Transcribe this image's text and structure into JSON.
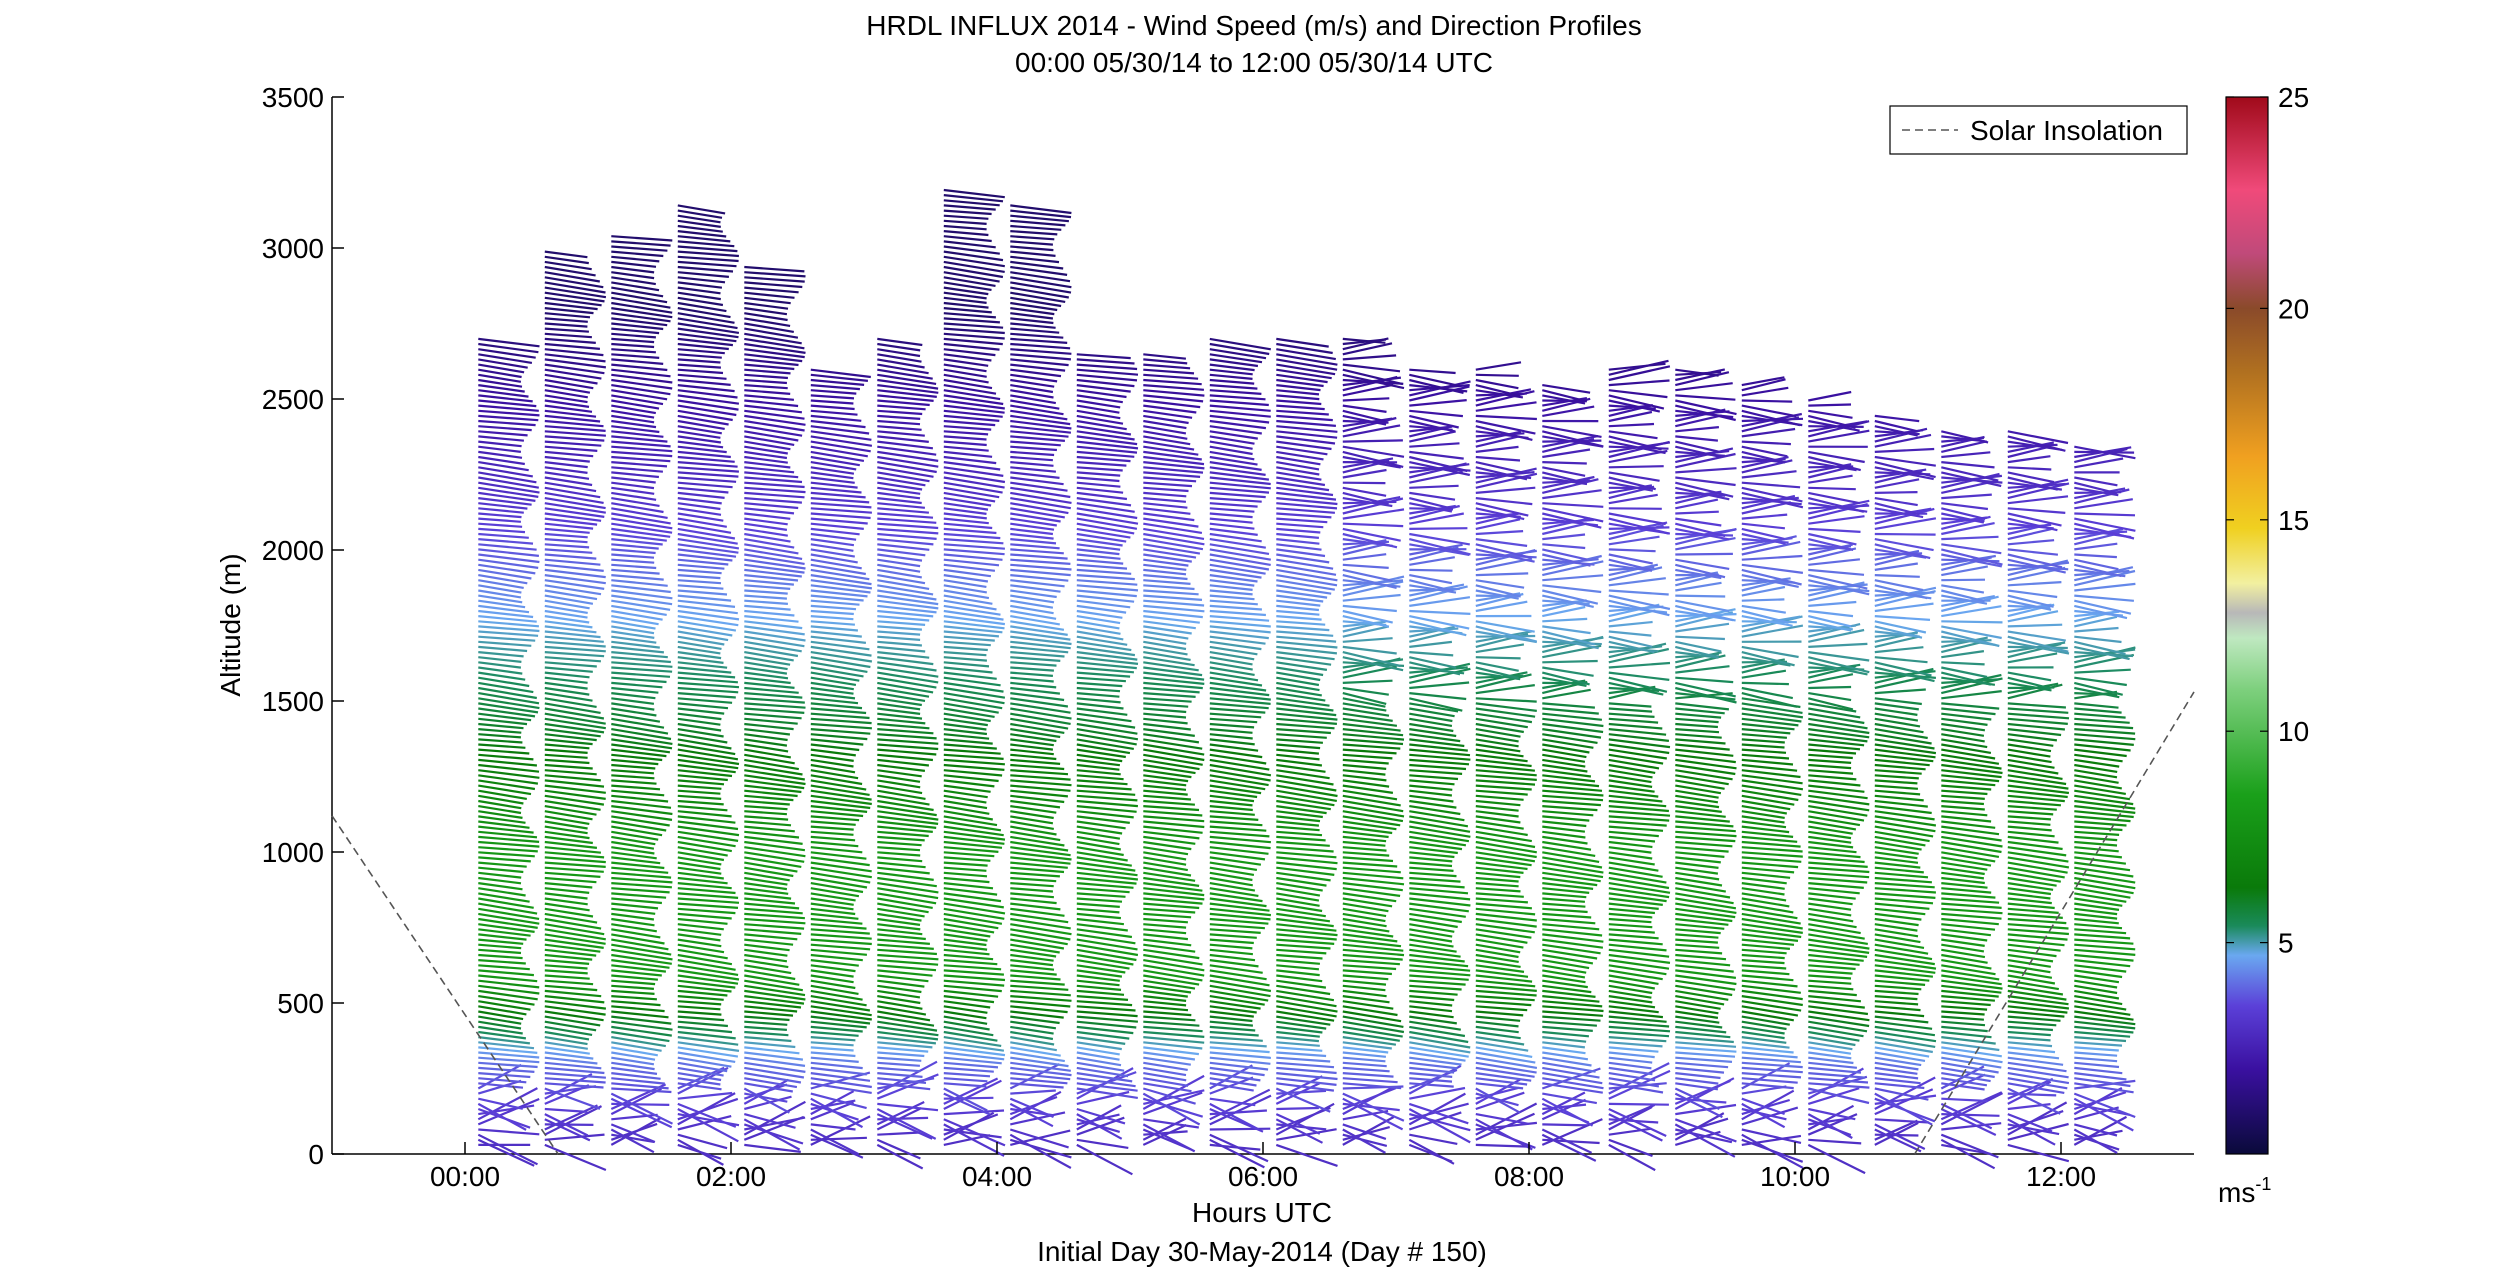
{
  "title": "HRDL INFLUX 2014 - Wind Speed (m/s) and Direction Profiles",
  "subtitle": "00:00 05/30/14 to 12:00 05/30/14  UTC",
  "xlabel": "Hours UTC",
  "xlabel2": "Initial Day 30-May-2014 (Day # 150)",
  "ylabel": "Altitude (m)",
  "legend": {
    "label": "Solar Insolation",
    "placement": "top-right",
    "style": "dashed"
  },
  "colorbar": {
    "unit_base": "ms",
    "unit_exp": "-1",
    "range": [
      0,
      25
    ],
    "ticks": [
      "5",
      "10",
      "15",
      "20",
      "25"
    ]
  },
  "chart_data": {
    "type": "wind-barb-profile",
    "title": "HRDL INFLUX 2014 - Wind Speed (m/s) and Direction Profiles",
    "subtitle": "00:00 05/30/14 to 12:00 05/30/14  UTC",
    "xlabel": "Hours UTC",
    "ylabel": "Altitude (m)",
    "xlim_hours": [
      -1,
      13
    ],
    "ylim": [
      0,
      3500
    ],
    "xticks": [
      {
        "value": 0,
        "label": "00:00"
      },
      {
        "value": 2,
        "label": "02:00"
      },
      {
        "value": 4,
        "label": "04:00"
      },
      {
        "value": 6,
        "label": "06:00"
      },
      {
        "value": 8,
        "label": "08:00"
      },
      {
        "value": 10,
        "label": "10:00"
      },
      {
        "value": 12,
        "label": "12:00"
      }
    ],
    "yticks": [
      "0",
      "500",
      "1000",
      "1500",
      "2000",
      "2500",
      "3000",
      "3500"
    ],
    "profile_times_hours": [
      0.1,
      0.6,
      1.1,
      1.6,
      2.1,
      2.6,
      3.1,
      3.6,
      4.1,
      4.6,
      5.1,
      5.6,
      6.1,
      6.6,
      7.1,
      7.6,
      8.1,
      8.6,
      9.1,
      9.6,
      10.1,
      10.6,
      11.1,
      11.6,
      12.1
    ],
    "profile_top_m": [
      2700,
      3000,
      3050,
      3150,
      2950,
      2600,
      2700,
      3200,
      3150,
      2650,
      2650,
      2700,
      2700,
      2700,
      2600,
      2600,
      2550,
      2600,
      2600,
      2550,
      2500,
      2450,
      2400,
      2400,
      2350
    ],
    "wind_speed_profile_mps": [
      {
        "altitude_m": 50,
        "speed": 3
      },
      {
        "altitude_m": 300,
        "speed": 4
      },
      {
        "altitude_m": 600,
        "speed": 8
      },
      {
        "altitude_m": 1000,
        "speed": 8
      },
      {
        "altitude_m": 1400,
        "speed": 6
      },
      {
        "altitude_m": 1700,
        "speed": 5
      },
      {
        "altitude_m": 2200,
        "speed": 3
      },
      {
        "altitude_m": 2800,
        "speed": 1
      }
    ],
    "solar_insolation_line": {
      "series": "Solar Insolation",
      "segments": [
        [
          {
            "t": -1.0,
            "alt": 1120
          },
          {
            "t": 0.7,
            "alt": 0
          }
        ],
        [
          {
            "t": 10.9,
            "alt": 0
          },
          {
            "t": 13.0,
            "alt": 1530
          }
        ]
      ]
    },
    "colorbar": {
      "range": [
        0,
        25
      ],
      "ticks": [
        5,
        10,
        15,
        20,
        25
      ],
      "stops": [
        {
          "v": 0,
          "c": "#0a0a3a"
        },
        {
          "v": 2,
          "c": "#3a10a0"
        },
        {
          "v": 3.5,
          "c": "#5b40d8"
        },
        {
          "v": 4.7,
          "c": "#6aa8f0"
        },
        {
          "v": 5.4,
          "c": "#1a8a5a"
        },
        {
          "v": 6.3,
          "c": "#0a7a0a"
        },
        {
          "v": 8.5,
          "c": "#1aa01a"
        },
        {
          "v": 11.0,
          "c": "#7ed07e"
        },
        {
          "v": 12.2,
          "c": "#bfe8c0"
        },
        {
          "v": 12.8,
          "c": "#b8b8b8"
        },
        {
          "v": 13.5,
          "c": "#f2f0a0"
        },
        {
          "v": 14.8,
          "c": "#f0d020"
        },
        {
          "v": 16.5,
          "c": "#f0a020"
        },
        {
          "v": 18.5,
          "c": "#b07020"
        },
        {
          "v": 20,
          "c": "#8a4a2a"
        },
        {
          "v": 21.3,
          "c": "#c04a7a"
        },
        {
          "v": 22.8,
          "c": "#f04a7a"
        },
        {
          "v": 25,
          "c": "#a00a1a"
        }
      ]
    }
  }
}
